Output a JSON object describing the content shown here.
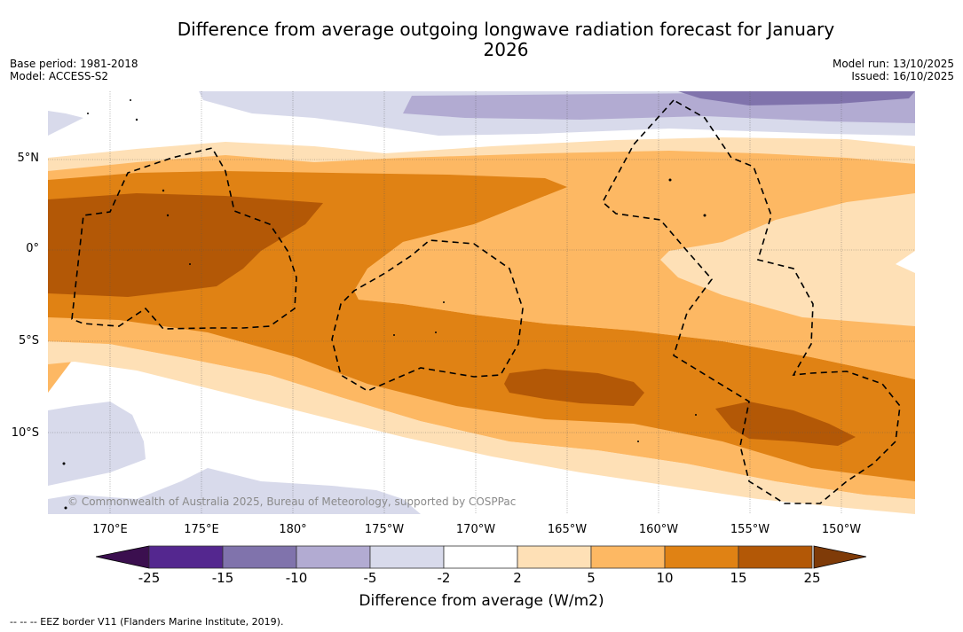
{
  "title": "Difference from average outgoing longwave radiation forecast for January 2026",
  "meta": {
    "base_period": "Base period: 1981-2018",
    "model": "Model: ACCESS-S2",
    "model_run": "Model run: 13/10/2025",
    "issued": "Issued: 16/10/2025"
  },
  "map": {
    "y_labels": [
      "5°N",
      "0°",
      "5°S",
      "10°S"
    ],
    "x_labels": [
      "170°E",
      "175°E",
      "180°",
      "175°W",
      "170°W",
      "165°W",
      "160°W",
      "155°W",
      "150°W"
    ],
    "copyright": "© Commonwealth of Australia 2025, Bureau of Meteorology, supported by COSPPac",
    "overlay": "EEZ borders (dashed lines)"
  },
  "colorbar": {
    "ticks": [
      "-25",
      "-15",
      "-10",
      "-5",
      "-2",
      "2",
      "5",
      "10",
      "15",
      "25"
    ],
    "colors": {
      "under": "#3b0f4f",
      "bins": [
        "#54278f",
        "#8073ac",
        "#b2abd2",
        "#d8daeb",
        "#ffffff",
        "#fee0b6",
        "#fdb863",
        "#e08214",
        "#b35806"
      ],
      "over": "#7f3b08"
    },
    "label": "Difference from average (W/m2)"
  },
  "footer": "--  --  -- EEZ border V11 (Flanders Marine Institute, 2019)."
}
